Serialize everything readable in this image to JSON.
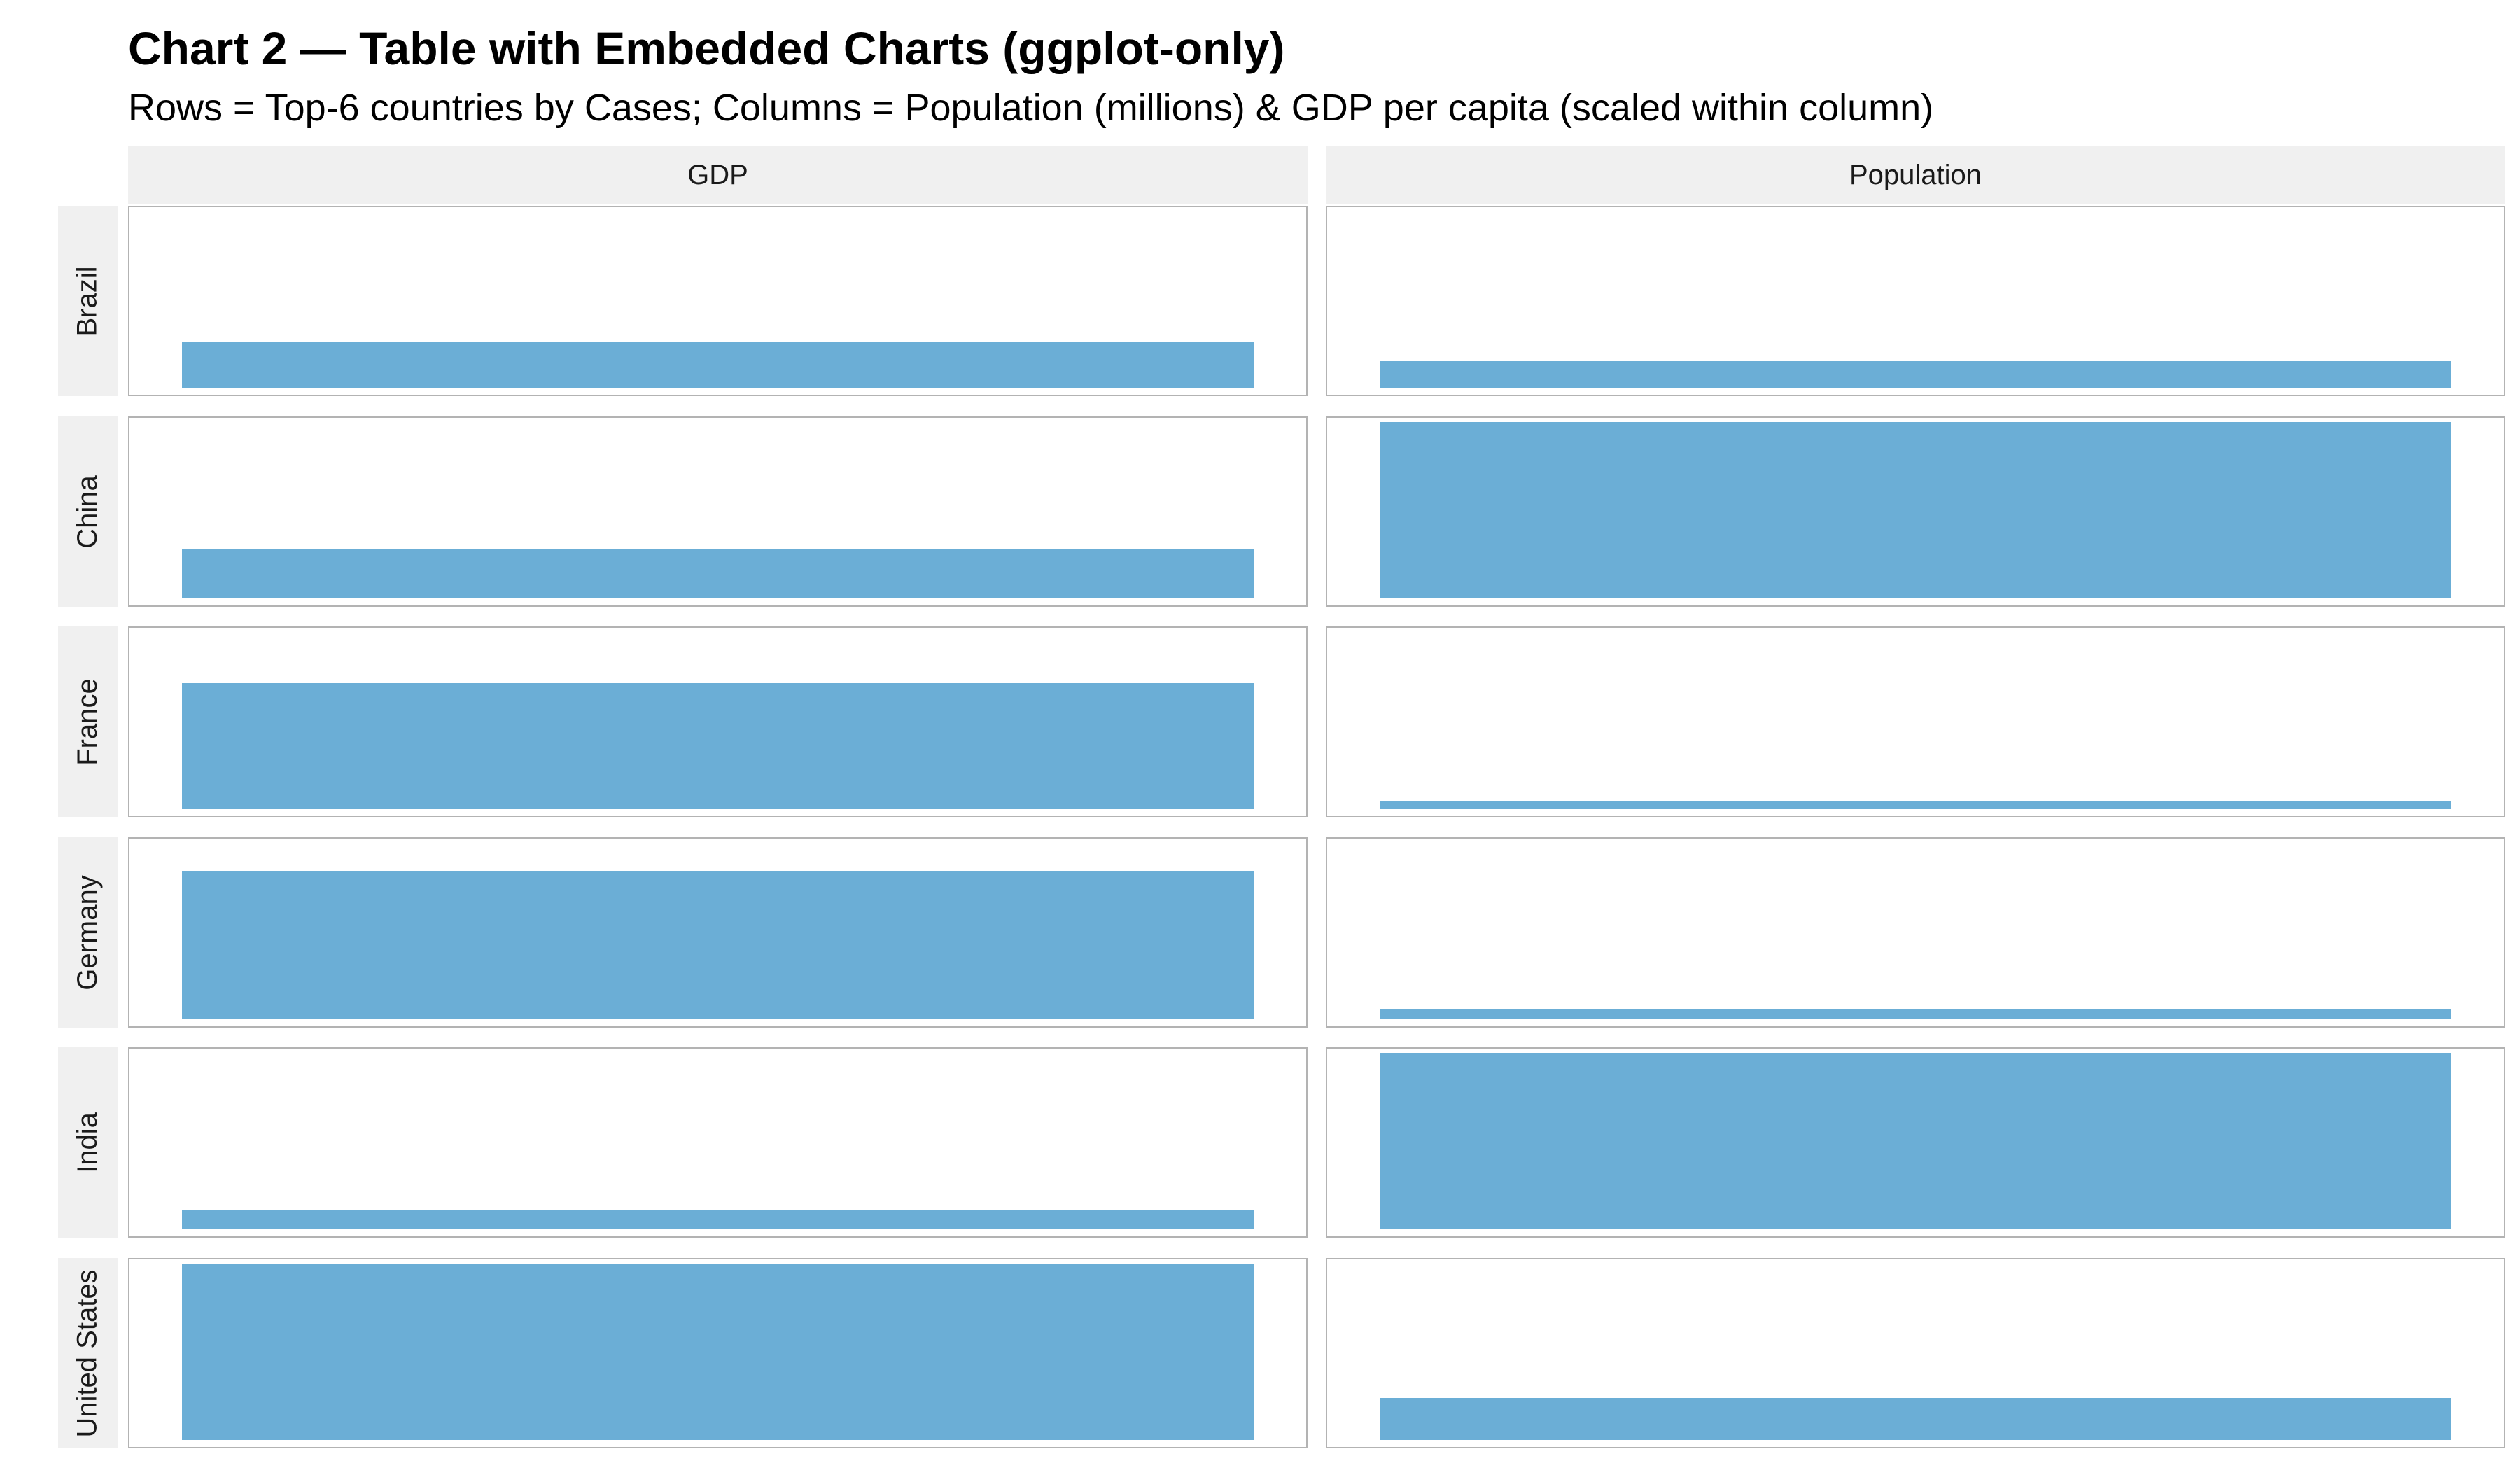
{
  "title": "Chart 2 — Table with Embedded Charts (ggplot-only)",
  "subtitle": "Rows = Top-6 countries by Cases; Columns = Population (millions) & GDP per capita  (scaled within column)",
  "colors": {
    "bar": "#6baed6",
    "strip_bg": "#f0f0f0",
    "panel_border": "#b3b3b3"
  },
  "chart_data": {
    "type": "bar",
    "facet_columns": [
      "GDP",
      "Population"
    ],
    "facet_rows": [
      "Brazil",
      "China",
      "France",
      "Germany",
      "India",
      "United States"
    ],
    "ylim": [
      0,
      1
    ],
    "series": [
      {
        "values": [
          0.26,
          0.28,
          0.71,
          0.84,
          0.11,
          1.0
        ]
      },
      {
        "values": [
          0.15,
          1.0,
          0.045,
          0.058,
          1.0,
          0.24
        ]
      }
    ]
  }
}
